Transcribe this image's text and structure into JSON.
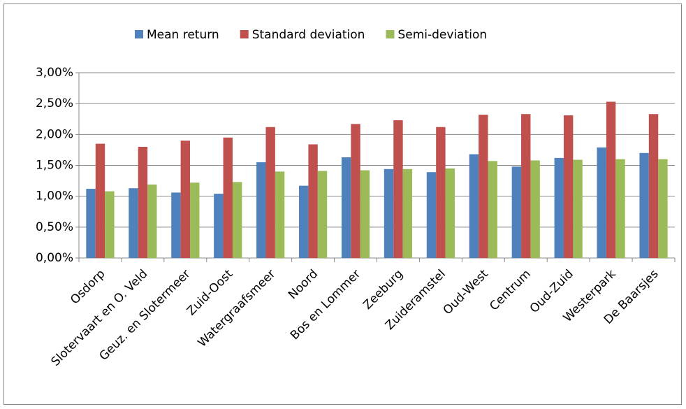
{
  "chart_data": {
    "type": "bar",
    "categories": [
      "Osdorp",
      "Slotervaart en O. Veld",
      "Geuz. en Slotermeer",
      "Zuid-Oost",
      "Watergraafsmeer",
      "Noord",
      "Bos en Lommer",
      "Zeeburg",
      "Zuideramstel",
      "Oud-West",
      "Centrum",
      "Oud-Zuid",
      "Westerpark",
      "De Baarsjes"
    ],
    "series": [
      {
        "name": "Mean return",
        "color": "#4f81bd",
        "values": [
          1.12,
          1.13,
          1.06,
          1.04,
          1.55,
          1.17,
          1.63,
          1.44,
          1.39,
          1.68,
          1.48,
          1.62,
          1.79,
          1.7
        ]
      },
      {
        "name": "Standard deviation",
        "color": "#c0504d",
        "values": [
          1.85,
          1.8,
          1.9,
          1.95,
          2.12,
          1.84,
          2.17,
          2.23,
          2.12,
          2.32,
          2.33,
          2.31,
          2.53,
          2.33
        ]
      },
      {
        "name": "Semi-deviation",
        "color": "#9bbb59",
        "values": [
          1.08,
          1.19,
          1.22,
          1.23,
          1.4,
          1.41,
          1.42,
          1.44,
          1.45,
          1.57,
          1.58,
          1.59,
          1.6,
          1.6
        ]
      }
    ],
    "ylim": [
      0,
      3
    ],
    "yticks": [
      {
        "value": 0,
        "label": "0,00%"
      },
      {
        "value": 0.5,
        "label": "0,50%"
      },
      {
        "value": 1,
        "label": "1,00%"
      },
      {
        "value": 1.5,
        "label": "1,50%"
      },
      {
        "value": 2,
        "label": "2,00%"
      },
      {
        "value": 2.5,
        "label": "2,50%"
      },
      {
        "value": 3,
        "label": "3,00%"
      }
    ],
    "grid": true,
    "legend": "top"
  }
}
